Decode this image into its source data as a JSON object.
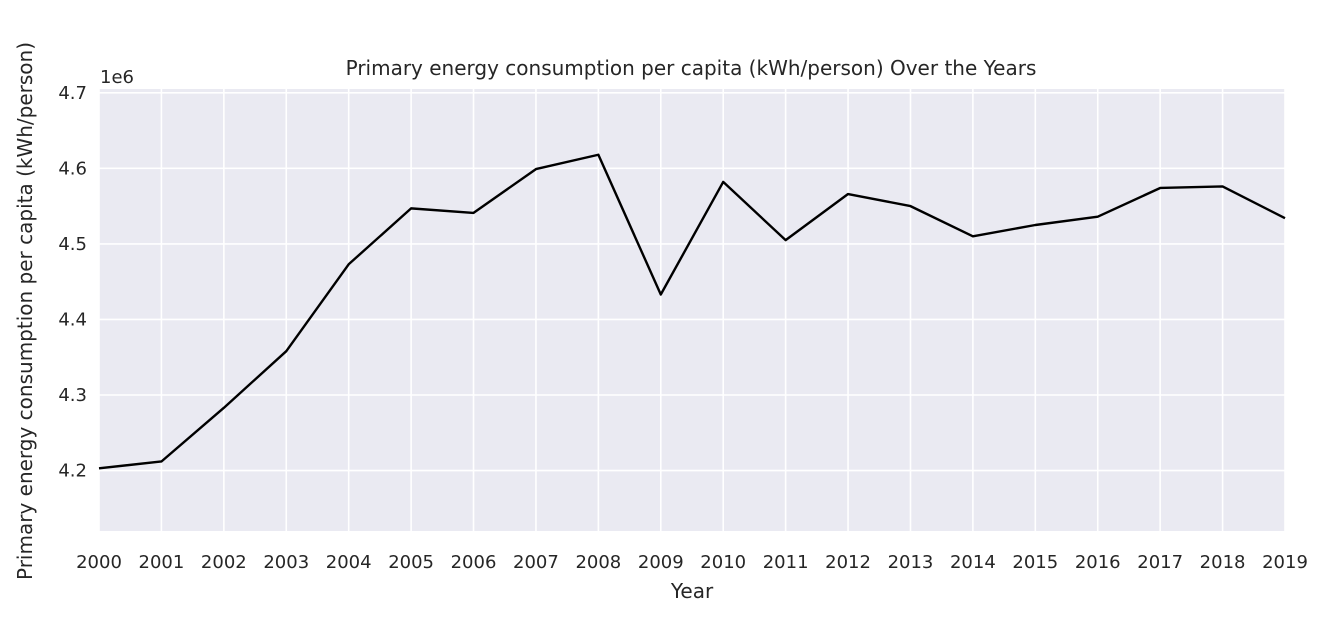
{
  "chart_data": {
    "type": "line",
    "title": "Primary energy consumption per capita (kWh/person) Over the Years",
    "xlabel": "Year",
    "ylabel": "Primary energy consumption per capita (kWh/person)",
    "y_offset_label": "1e6",
    "y_scale_factor": 1000000,
    "xlim": [
      2000,
      2019
    ],
    "ylim": [
      4.12,
      4.705
    ],
    "x_ticks": [
      "2000",
      "2001",
      "2002",
      "2003",
      "2004",
      "2005",
      "2006",
      "2007",
      "2008",
      "2009",
      "2010",
      "2011",
      "2012",
      "2013",
      "2014",
      "2015",
      "2016",
      "2017",
      "2018",
      "2019"
    ],
    "y_ticks": [
      "4.2",
      "4.3",
      "4.4",
      "4.5",
      "4.6",
      "4.7"
    ],
    "grid": true,
    "legend": "none",
    "colors": {
      "line": "#000000",
      "plot_background": "#eaeaf2",
      "grid": "#ffffff"
    },
    "series": [
      {
        "x": [
          2000,
          2001,
          2002,
          2003,
          2004,
          2005,
          2006,
          2007,
          2008,
          2009,
          2010,
          2011,
          2012,
          2013,
          2014,
          2015,
          2016,
          2017,
          2018,
          2019
        ],
        "values": [
          4.203,
          4.212,
          4.283,
          4.358,
          4.473,
          4.547,
          4.541,
          4.599,
          4.618,
          4.433,
          4.582,
          4.505,
          4.566,
          4.55,
          4.51,
          4.525,
          4.536,
          4.574,
          4.576,
          4.534
        ]
      }
    ]
  }
}
